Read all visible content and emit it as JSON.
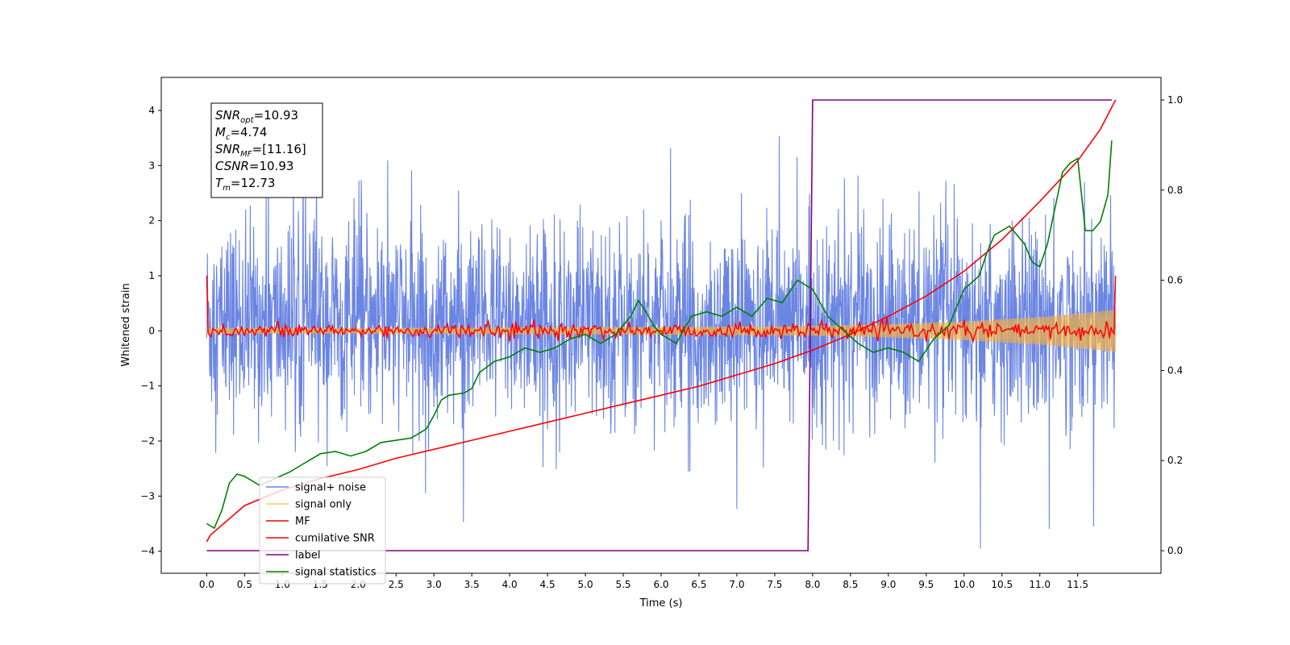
{
  "chart_data": {
    "type": "line",
    "xlabel": "Time (s)",
    "ylabel_left": "Whitened strain",
    "ylabel_right": "",
    "xlim": [
      -0.6,
      12.6
    ],
    "ylim_left": [
      -4.4,
      4.6
    ],
    "ylim_right": [
      -0.05,
      1.05
    ],
    "x_ticks": [
      0.0,
      0.5,
      1.0,
      1.5,
      2.0,
      2.5,
      3.0,
      3.5,
      4.0,
      4.5,
      5.0,
      5.5,
      6.0,
      6.5,
      7.0,
      7.5,
      8.0,
      8.5,
      9.0,
      9.5,
      10.0,
      10.5,
      11.0,
      11.5
    ],
    "x_tick_labels": [
      "0.0",
      "0.5",
      "1.0",
      "1.5",
      "2.0",
      "2.5",
      "3.0",
      "3.5",
      "4.0",
      "4.5",
      "5.0",
      "5.5",
      "6.0",
      "6.5",
      "7.0",
      "7.5",
      "8.0",
      "8.5",
      "9.0",
      "9.5",
      "10.0",
      "10.5",
      "11.0",
      "11.5"
    ],
    "y_left_ticks": [
      -4,
      -3,
      -2,
      -1,
      0,
      1,
      2,
      3,
      4
    ],
    "y_left_tick_labels": [
      "−4",
      "−3",
      "−2",
      "−1",
      "0",
      "1",
      "2",
      "3",
      "4"
    ],
    "y_right_ticks": [
      0.0,
      0.2,
      0.4,
      0.6,
      0.8,
      1.0
    ],
    "y_right_tick_labels": [
      "0.0",
      "0.2",
      "0.4",
      "0.6",
      "0.8",
      "1.0"
    ],
    "grid": false,
    "legend_position": "lower-left",
    "annotation_box": {
      "lines": [
        {
          "base": "SNR",
          "sub": "opt",
          "value": "=10.93"
        },
        {
          "base": "M",
          "sub": "c",
          "value": "=4.74"
        },
        {
          "base": "SNR",
          "sub": "MF",
          "value": "=[11.16]"
        },
        {
          "base": "CSNR",
          "sub": "",
          "value": "=10.93"
        },
        {
          "base": "T",
          "sub": "m",
          "value": "=12.73"
        }
      ]
    },
    "series": [
      {
        "name": "signal+ noise",
        "axis": "left",
        "color": "#6b85e3",
        "kind": "noise",
        "approx_std": 0.9,
        "x_range": [
          0.0,
          12.0
        ]
      },
      {
        "name": "signal only",
        "axis": "left",
        "color": "#f5b041",
        "kind": "envelope",
        "x": [
          0.0,
          2.0,
          4.0,
          6.0,
          8.0,
          9.0,
          10.0,
          11.0,
          12.0
        ],
        "amplitude": [
          0.05,
          0.05,
          0.06,
          0.07,
          0.09,
          0.12,
          0.17,
          0.25,
          0.38
        ]
      },
      {
        "name": "MF",
        "axis": "left",
        "color": "#ff0000",
        "kind": "noise",
        "approx_std": 0.07,
        "x_range": [
          0.0,
          12.0
        ],
        "edge_value": 1.0
      },
      {
        "name": "cumilative SNR",
        "axis": "right",
        "color": "#ff0000",
        "x": [
          0.0,
          0.05,
          0.5,
          1.0,
          1.5,
          2.0,
          2.5,
          3.0,
          3.5,
          4.0,
          4.5,
          5.0,
          5.5,
          6.0,
          6.5,
          7.0,
          7.5,
          8.0,
          8.5,
          9.0,
          9.5,
          10.0,
          10.5,
          11.0,
          11.5,
          11.8,
          12.0
        ],
        "y": [
          0.02,
          0.035,
          0.1,
          0.135,
          0.16,
          0.18,
          0.205,
          0.225,
          0.245,
          0.265,
          0.285,
          0.305,
          0.325,
          0.345,
          0.365,
          0.39,
          0.415,
          0.445,
          0.48,
          0.52,
          0.565,
          0.62,
          0.69,
          0.775,
          0.865,
          0.935,
          1.0
        ]
      },
      {
        "name": "label",
        "axis": "right",
        "color": "#800080",
        "x": [
          0.0,
          7.94,
          8.0,
          11.95
        ],
        "y": [
          0.0,
          0.0,
          1.0,
          1.0
        ]
      },
      {
        "name": "signal statistics",
        "axis": "right",
        "color": "#008000",
        "x": [
          0.0,
          0.1,
          0.2,
          0.3,
          0.4,
          0.5,
          0.7,
          0.9,
          1.1,
          1.3,
          1.5,
          1.7,
          1.9,
          2.1,
          2.3,
          2.5,
          2.7,
          2.9,
          3.0,
          3.1,
          3.2,
          3.4,
          3.5,
          3.6,
          3.8,
          4.0,
          4.2,
          4.4,
          4.6,
          4.8,
          5.0,
          5.2,
          5.4,
          5.6,
          5.7,
          5.8,
          5.9,
          6.0,
          6.2,
          6.4,
          6.6,
          6.8,
          7.0,
          7.2,
          7.4,
          7.6,
          7.8,
          8.0,
          8.2,
          8.4,
          8.6,
          8.8,
          9.0,
          9.2,
          9.4,
          9.6,
          9.8,
          10.0,
          10.2,
          10.3,
          10.4,
          10.6,
          10.8,
          10.9,
          11.0,
          11.1,
          11.2,
          11.3,
          11.4,
          11.5,
          11.6,
          11.7,
          11.8,
          11.9,
          11.95
        ],
        "y": [
          0.06,
          0.05,
          0.09,
          0.15,
          0.17,
          0.165,
          0.145,
          0.16,
          0.175,
          0.195,
          0.215,
          0.22,
          0.21,
          0.22,
          0.24,
          0.245,
          0.25,
          0.27,
          0.3,
          0.335,
          0.345,
          0.35,
          0.36,
          0.395,
          0.42,
          0.43,
          0.45,
          0.44,
          0.45,
          0.47,
          0.48,
          0.46,
          0.48,
          0.52,
          0.555,
          0.53,
          0.5,
          0.48,
          0.46,
          0.52,
          0.53,
          0.52,
          0.54,
          0.52,
          0.56,
          0.55,
          0.6,
          0.58,
          0.52,
          0.49,
          0.46,
          0.44,
          0.45,
          0.44,
          0.42,
          0.47,
          0.5,
          0.58,
          0.61,
          0.66,
          0.7,
          0.72,
          0.68,
          0.64,
          0.63,
          0.68,
          0.76,
          0.84,
          0.86,
          0.87,
          0.71,
          0.71,
          0.73,
          0.79,
          0.91
        ]
      }
    ]
  }
}
